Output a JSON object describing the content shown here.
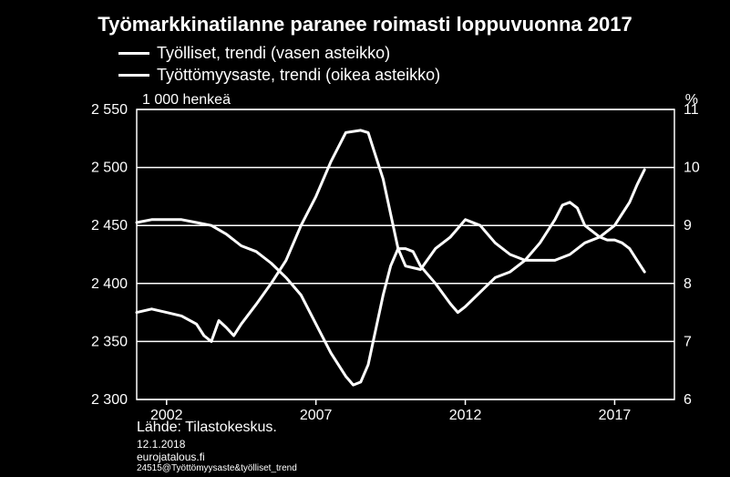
{
  "chart": {
    "type": "line-dual-axis",
    "title": "Työmarkkinatilanne paranee roimasti loppuvuonna 2017",
    "background_color": "#000000",
    "text_color": "#ffffff",
    "line_color": "#ffffff",
    "line_width": 3,
    "grid_color": "#ffffff",
    "grid_width": 1.5,
    "title_fontsize": 22,
    "label_fontsize": 16,
    "legend_fontsize": 18,
    "legend": [
      {
        "label": "Työlliset, trendi (vasen asteikko)",
        "color": "#ffffff"
      },
      {
        "label": "Työttömyysaste, trendi (oikea asteikko)",
        "color": "#ffffff"
      }
    ],
    "unit_left": "1 000 henkeä",
    "unit_right": "%",
    "x": {
      "start_year": 2001,
      "end_year": 2019,
      "ticks": [
        2002,
        2007,
        2012,
        2017
      ]
    },
    "y_left": {
      "min": 2300,
      "max": 2550,
      "ticks": [
        2300,
        2350,
        2400,
        2450,
        2500,
        2550
      ],
      "tick_labels": [
        "2 300",
        "2 350",
        "2 400",
        "2 450",
        "2 500",
        "2 550"
      ]
    },
    "y_right": {
      "min": 6,
      "max": 11,
      "ticks": [
        6,
        7,
        8,
        9,
        10,
        11
      ]
    },
    "series_employed": [
      [
        2001.0,
        2375
      ],
      [
        2001.5,
        2378
      ],
      [
        2002.0,
        2375
      ],
      [
        2002.5,
        2372
      ],
      [
        2003.0,
        2365
      ],
      [
        2003.25,
        2355
      ],
      [
        2003.5,
        2350
      ],
      [
        2003.75,
        2368
      ],
      [
        2004.0,
        2362
      ],
      [
        2004.25,
        2355
      ],
      [
        2004.5,
        2365
      ],
      [
        2005.0,
        2382
      ],
      [
        2005.5,
        2400
      ],
      [
        2006.0,
        2420
      ],
      [
        2006.5,
        2450
      ],
      [
        2007.0,
        2475
      ],
      [
        2007.5,
        2505
      ],
      [
        2008.0,
        2530
      ],
      [
        2008.5,
        2532
      ],
      [
        2008.75,
        2530
      ],
      [
        2009.0,
        2510
      ],
      [
        2009.25,
        2490
      ],
      [
        2009.5,
        2460
      ],
      [
        2009.75,
        2430
      ],
      [
        2010.0,
        2415
      ],
      [
        2010.5,
        2412
      ],
      [
        2011.0,
        2430
      ],
      [
        2011.5,
        2440
      ],
      [
        2012.0,
        2455
      ],
      [
        2012.5,
        2450
      ],
      [
        2013.0,
        2435
      ],
      [
        2013.5,
        2425
      ],
      [
        2014.0,
        2420
      ],
      [
        2014.5,
        2420
      ],
      [
        2015.0,
        2420
      ],
      [
        2015.5,
        2425
      ],
      [
        2016.0,
        2435
      ],
      [
        2016.5,
        2440
      ],
      [
        2017.0,
        2450
      ],
      [
        2017.25,
        2460
      ],
      [
        2017.5,
        2470
      ],
      [
        2017.75,
        2485
      ],
      [
        2018.0,
        2498
      ]
    ],
    "series_unemployment": [
      [
        2001.0,
        9.05
      ],
      [
        2001.5,
        9.1
      ],
      [
        2002.0,
        9.1
      ],
      [
        2002.5,
        9.1
      ],
      [
        2003.0,
        9.05
      ],
      [
        2003.5,
        9.0
      ],
      [
        2004.0,
        8.85
      ],
      [
        2004.5,
        8.65
      ],
      [
        2005.0,
        8.55
      ],
      [
        2005.5,
        8.35
      ],
      [
        2006.0,
        8.1
      ],
      [
        2006.5,
        7.8
      ],
      [
        2007.0,
        7.3
      ],
      [
        2007.5,
        6.8
      ],
      [
        2008.0,
        6.4
      ],
      [
        2008.25,
        6.25
      ],
      [
        2008.5,
        6.3
      ],
      [
        2008.75,
        6.6
      ],
      [
        2009.0,
        7.2
      ],
      [
        2009.25,
        7.8
      ],
      [
        2009.5,
        8.3
      ],
      [
        2009.75,
        8.6
      ],
      [
        2010.0,
        8.6
      ],
      [
        2010.25,
        8.55
      ],
      [
        2010.5,
        8.3
      ],
      [
        2011.0,
        8.0
      ],
      [
        2011.5,
        7.65
      ],
      [
        2011.75,
        7.5
      ],
      [
        2012.0,
        7.6
      ],
      [
        2012.5,
        7.85
      ],
      [
        2013.0,
        8.1
      ],
      [
        2013.5,
        8.2
      ],
      [
        2014.0,
        8.4
      ],
      [
        2014.5,
        8.7
      ],
      [
        2015.0,
        9.1
      ],
      [
        2015.25,
        9.35
      ],
      [
        2015.5,
        9.4
      ],
      [
        2015.75,
        9.3
      ],
      [
        2016.0,
        9.0
      ],
      [
        2016.25,
        8.9
      ],
      [
        2016.5,
        8.8
      ],
      [
        2016.75,
        8.75
      ],
      [
        2017.0,
        8.75
      ],
      [
        2017.25,
        8.7
      ],
      [
        2017.5,
        8.6
      ],
      [
        2017.75,
        8.4
      ],
      [
        2018.0,
        8.2
      ]
    ],
    "source_label": "Lähde: Tilastokeskus.",
    "date_label": "12.1.2018",
    "site_label": "eurojatalous.fi",
    "code_label": "24515@Työttömyysaste&työlliset_trend"
  }
}
